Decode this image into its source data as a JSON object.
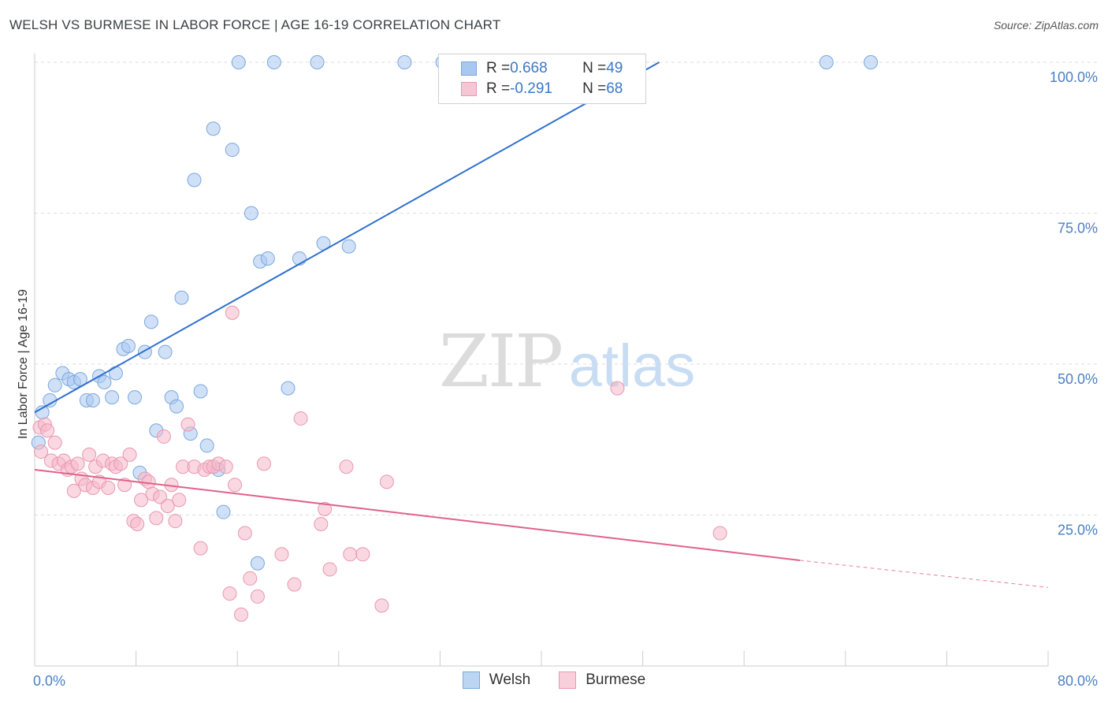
{
  "header": {
    "title": "WELSH VS BURMESE IN LABOR FORCE | AGE 16-19 CORRELATION CHART",
    "source": "Source: ZipAtlas.com"
  },
  "watermark": {
    "zip": "ZIP",
    "atlas": "atlas"
  },
  "legend": {
    "rows": [
      {
        "r_label": "R = ",
        "r_value": "0.668",
        "n_label": "N = ",
        "n_value": "49",
        "color": "#a9c8f0"
      },
      {
        "r_label": "R = ",
        "r_value": "-0.291",
        "n_label": "N = ",
        "n_value": "68",
        "color": "#f5b8ca"
      }
    ]
  },
  "bottom_legend": [
    {
      "label": "Welsh",
      "color": "#a9c8f0"
    },
    {
      "label": "Burmese",
      "color": "#f5b8ca"
    }
  ],
  "chart_data": {
    "type": "scatter",
    "title": "WELSH VS BURMESE IN LABOR FORCE | AGE 16-19 CORRELATION CHART",
    "xlabel": "",
    "ylabel": "In Labor Force | Age 16-19",
    "xlim": [
      0,
      80
    ],
    "ylim": [
      0,
      100
    ],
    "x_tick_labels": [
      "0.0%",
      "80.0%"
    ],
    "y_ticks": [
      25,
      50,
      75,
      100
    ],
    "y_tick_labels": [
      "25.0%",
      "50.0%",
      "75.0%",
      "100.0%"
    ],
    "grid": true,
    "series": [
      {
        "name": "Welsh",
        "color": "#a9c8f0",
        "stroke": "#7aa7de",
        "line_color": "#2e6fcf",
        "R": 0.668,
        "N": 49,
        "trend": {
          "x0": 0,
          "y0": 42.0,
          "x1": 49.3,
          "y1": 100
        },
        "points": [
          [
            0.3,
            37.0
          ],
          [
            0.6,
            42.0
          ],
          [
            1.2,
            44.0
          ],
          [
            1.6,
            46.5
          ],
          [
            2.2,
            48.5
          ],
          [
            2.7,
            47.5
          ],
          [
            3.1,
            47.0
          ],
          [
            3.6,
            47.5
          ],
          [
            4.1,
            44.0
          ],
          [
            4.6,
            44.0
          ],
          [
            5.1,
            48.0
          ],
          [
            5.5,
            47.0
          ],
          [
            6.1,
            44.5
          ],
          [
            6.4,
            48.5
          ],
          [
            7.0,
            52.5
          ],
          [
            7.4,
            53.0
          ],
          [
            7.9,
            44.5
          ],
          [
            8.7,
            52.0
          ],
          [
            9.2,
            57.0
          ],
          [
            9.6,
            39.0
          ],
          [
            10.3,
            52.0
          ],
          [
            10.8,
            44.5
          ],
          [
            11.2,
            43.0
          ],
          [
            11.6,
            61.0
          ],
          [
            12.3,
            38.5
          ],
          [
            12.6,
            80.5
          ],
          [
            13.1,
            45.5
          ],
          [
            13.6,
            36.5
          ],
          [
            14.1,
            89.0
          ],
          [
            14.9,
            25.5
          ],
          [
            15.6,
            85.5
          ],
          [
            16.1,
            100
          ],
          [
            17.1,
            75.0
          ],
          [
            17.8,
            67.0
          ],
          [
            18.4,
            67.5
          ],
          [
            18.9,
            100
          ],
          [
            17.6,
            17.0
          ],
          [
            20.0,
            46.0
          ],
          [
            20.9,
            67.5
          ],
          [
            22.3,
            100
          ],
          [
            22.8,
            70.0
          ],
          [
            24.8,
            69.5
          ],
          [
            29.2,
            100
          ],
          [
            32.2,
            100
          ],
          [
            35.5,
            100
          ],
          [
            62.5,
            100
          ],
          [
            66.0,
            100
          ],
          [
            8.3,
            32.0
          ],
          [
            14.5,
            32.5
          ]
        ]
      },
      {
        "name": "Burmese",
        "color": "#f5b8ca",
        "stroke": "#e997b0",
        "line_color": "#e0628c",
        "R": -0.291,
        "N": 68,
        "trend": {
          "x0": 0,
          "y0": 32.5,
          "x1": 60.4,
          "y1": 17.5,
          "dash_x1": 80,
          "dash_y1": 13.0
        },
        "points": [
          [
            0.4,
            39.5
          ],
          [
            0.8,
            40.0
          ],
          [
            1.0,
            39.0
          ],
          [
            1.3,
            34.0
          ],
          [
            1.6,
            37.0
          ],
          [
            1.9,
            33.5
          ],
          [
            2.3,
            34.0
          ],
          [
            2.6,
            32.5
          ],
          [
            2.9,
            33.0
          ],
          [
            3.1,
            29.0
          ],
          [
            3.4,
            33.5
          ],
          [
            3.7,
            31.0
          ],
          [
            4.0,
            30.0
          ],
          [
            4.3,
            35.0
          ],
          [
            4.6,
            29.5
          ],
          [
            4.8,
            33.0
          ],
          [
            5.1,
            30.5
          ],
          [
            5.4,
            34.0
          ],
          [
            5.8,
            29.5
          ],
          [
            6.1,
            33.5
          ],
          [
            6.4,
            33.0
          ],
          [
            6.8,
            33.5
          ],
          [
            7.1,
            30.0
          ],
          [
            7.5,
            35.0
          ],
          [
            7.8,
            24.0
          ],
          [
            8.1,
            23.5
          ],
          [
            8.4,
            27.5
          ],
          [
            8.7,
            31.0
          ],
          [
            9.0,
            30.5
          ],
          [
            9.3,
            28.5
          ],
          [
            9.6,
            24.5
          ],
          [
            9.9,
            28.0
          ],
          [
            10.2,
            38.0
          ],
          [
            10.5,
            26.5
          ],
          [
            10.8,
            30.0
          ],
          [
            11.1,
            24.0
          ],
          [
            11.4,
            27.5
          ],
          [
            11.7,
            33.0
          ],
          [
            12.1,
            40.0
          ],
          [
            12.6,
            33.0
          ],
          [
            13.1,
            19.5
          ],
          [
            13.4,
            32.5
          ],
          [
            13.8,
            33.0
          ],
          [
            14.1,
            33.0
          ],
          [
            14.5,
            33.5
          ],
          [
            15.1,
            33.0
          ],
          [
            15.4,
            12.0
          ],
          [
            15.8,
            30.0
          ],
          [
            16.3,
            8.5
          ],
          [
            16.6,
            22.0
          ],
          [
            17.0,
            14.5
          ],
          [
            17.6,
            11.5
          ],
          [
            18.1,
            33.5
          ],
          [
            19.5,
            18.5
          ],
          [
            20.5,
            13.5
          ],
          [
            21.0,
            41.0
          ],
          [
            22.6,
            23.5
          ],
          [
            22.9,
            26.0
          ],
          [
            23.3,
            16.0
          ],
          [
            24.6,
            33.0
          ],
          [
            24.9,
            18.5
          ],
          [
            25.9,
            18.5
          ],
          [
            27.4,
            10.0
          ],
          [
            27.8,
            30.5
          ],
          [
            15.6,
            58.5
          ],
          [
            46.0,
            46.0
          ],
          [
            54.1,
            22.0
          ],
          [
            0.5,
            35.5
          ]
        ]
      }
    ]
  }
}
